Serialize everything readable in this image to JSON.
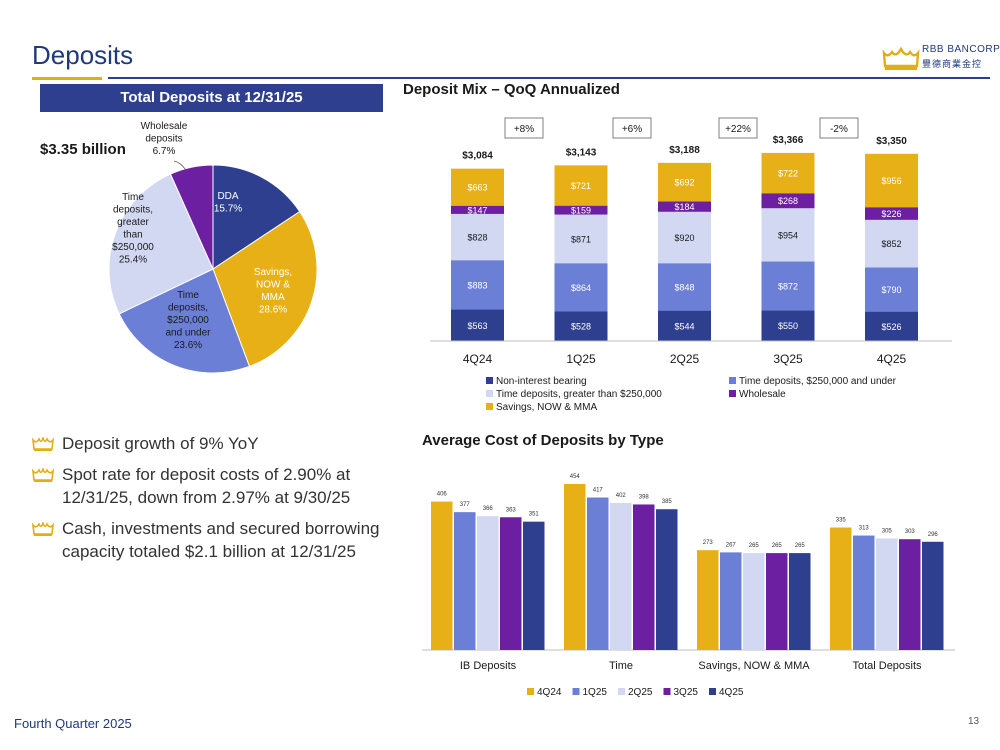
{
  "page": {
    "title": "Deposits",
    "logo_name": "RBB BANCORP",
    "logo_subtitle": "豐德商業金控",
    "footer": "Fourth Quarter 2025",
    "page_number": "13"
  },
  "left_panel": {
    "banner": "Total Deposits at 12/31/25",
    "total": "$3.35 billion"
  },
  "bullets": [
    "Deposit growth of 9% YoY",
    "Spot rate for deposit costs of 2.90% at 12/31/25, down from 2.97% at 9/30/25",
    "Cash, investments and secured borrowing capacity totaled $2.1 billion at 12/31/25"
  ],
  "colors": {
    "navy": "#2e3f8f",
    "gold": "#e8b017",
    "mid_blue": "#6b7fd7",
    "light_lavender": "#d2d8f2",
    "purple": "#6c1fa0"
  },
  "chart_data": [
    {
      "type": "pie",
      "title": "Total Deposits at 12/31/25",
      "slices": [
        {
          "label": "DDA",
          "value": 15.7,
          "value_label": "15.7%",
          "color": "#2e3f8f"
        },
        {
          "label": "Savings, NOW & MMA",
          "value": 28.6,
          "value_label": "28.6%",
          "color": "#e8b017"
        },
        {
          "label": "Time deposits, $250,000 and under",
          "value": 23.6,
          "value_label": "23.6%",
          "color": "#6b7fd7"
        },
        {
          "label": "Time deposits, greater than $250,000",
          "value": 25.4,
          "value_label": "25.4%",
          "color": "#d2d8f2"
        },
        {
          "label": "Wholesale deposits",
          "value": 6.7,
          "value_label": "6.7%",
          "color": "#6c1fa0"
        }
      ]
    },
    {
      "type": "bar",
      "stacked": true,
      "title": "Deposit Mix – QoQ Annualized",
      "categories": [
        "4Q24",
        "1Q25",
        "2Q25",
        "3Q25",
        "4Q25"
      ],
      "series": [
        {
          "name": "Non-interest bearing",
          "color": "#2e3f8f",
          "values": [
            563,
            528,
            544,
            550,
            526
          ],
          "labels": [
            "$563",
            "$528",
            "$544",
            "$550",
            "$526"
          ]
        },
        {
          "name": "Time deposits, $250,000 and under",
          "color": "#6b7fd7",
          "values": [
            883,
            864,
            848,
            872,
            790
          ],
          "labels": [
            "$883",
            "$864",
            "$848",
            "$872",
            "$790"
          ]
        },
        {
          "name": "Time deposits, greater than $250,000",
          "color": "#d2d8f2",
          "values": [
            828,
            871,
            920,
            954,
            852
          ],
          "labels": [
            "$828",
            "$871",
            "$920",
            "$954",
            "$852"
          ]
        },
        {
          "name": "Wholesale",
          "color": "#6c1fa0",
          "values": [
            147,
            159,
            184,
            268,
            226
          ],
          "labels": [
            "$147",
            "$159",
            "$184",
            "$268",
            "$226"
          ]
        },
        {
          "name": "Savings, NOW & MMA",
          "color": "#e8b017",
          "values": [
            663,
            721,
            692,
            722,
            956
          ],
          "labels": [
            "$663",
            "$721",
            "$692",
            "$722",
            "$956"
          ]
        }
      ],
      "totals": [
        "$3,084",
        "$3,143",
        "$3,188",
        "$3,366",
        "$3,350"
      ],
      "growth": [
        "+8%",
        "+6%",
        "+22%",
        "-2%"
      ],
      "legend": [
        {
          "name": "Non-interest bearing",
          "color": "#2e3f8f"
        },
        {
          "name": "Time deposits, $250,000 and under",
          "color": "#6b7fd7"
        },
        {
          "name": "Time deposits, greater than $250,000",
          "color": "#d2d8f2"
        },
        {
          "name": "Wholesale",
          "color": "#6c1fa0"
        },
        {
          "name": "Savings, NOW & MMA",
          "color": "#e8b017"
        }
      ],
      "ylim": [
        0,
        3500
      ]
    },
    {
      "type": "bar",
      "title": "Average Cost of Deposits by Type",
      "categories": [
        "IB Deposits",
        "Time",
        "Savings, NOW & MMA",
        "Total Deposits"
      ],
      "series": [
        {
          "name": "4Q24",
          "color": "#e8b017",
          "values": [
            406,
            454,
            273,
            335
          ]
        },
        {
          "name": "1Q25",
          "color": "#6b7fd7",
          "values": [
            377,
            417,
            267,
            313
          ]
        },
        {
          "name": "2Q25",
          "color": "#d2d8f2",
          "values": [
            366,
            402,
            265,
            305
          ]
        },
        {
          "name": "3Q25",
          "color": "#6c1fa0",
          "values": [
            363,
            398,
            265,
            303
          ]
        },
        {
          "name": "4Q25",
          "color": "#2e3f8f",
          "values": [
            351,
            385,
            265,
            296
          ]
        }
      ],
      "ylim": [
        0,
        480
      ]
    }
  ]
}
